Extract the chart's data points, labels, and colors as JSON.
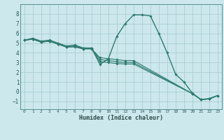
{
  "background_color": "#cce8ec",
  "grid_color": "#aacdd4",
  "line_color": "#2d7a6e",
  "spine_color": "#5a9090",
  "xlabel": "Humidex (Indice chaleur)",
  "xlim": [
    -0.5,
    23.5
  ],
  "ylim": [
    -1.8,
    9.0
  ],
  "yticks": [
    -1,
    0,
    1,
    2,
    3,
    4,
    5,
    6,
    7,
    8
  ],
  "xticks": [
    0,
    1,
    2,
    3,
    4,
    5,
    6,
    7,
    8,
    9,
    10,
    11,
    12,
    13,
    14,
    15,
    16,
    17,
    18,
    19,
    20,
    21,
    22,
    23
  ],
  "line1_x": [
    0,
    1,
    2,
    3,
    4,
    5,
    6,
    7,
    8,
    9,
    10,
    11,
    12,
    13,
    14,
    15,
    16,
    17,
    18,
    19,
    20,
    21,
    22,
    23
  ],
  "line1_y": [
    5.3,
    5.5,
    5.2,
    5.3,
    5.0,
    4.7,
    4.8,
    4.5,
    4.5,
    2.8,
    3.4,
    5.7,
    7.0,
    7.9,
    7.9,
    7.8,
    6.0,
    4.0,
    1.8,
    1.0,
    -0.15,
    -0.8,
    -0.7,
    -0.4
  ],
  "line2_x": [
    0,
    1,
    2,
    3,
    4,
    5,
    6,
    7,
    8,
    9,
    10,
    11,
    12,
    13,
    20,
    21,
    22,
    23
  ],
  "line2_y": [
    5.3,
    5.4,
    5.1,
    5.2,
    4.9,
    4.6,
    4.6,
    4.4,
    4.4,
    3.5,
    3.4,
    3.3,
    3.2,
    3.2,
    -0.2,
    -0.8,
    -0.75,
    -0.4
  ],
  "line3_x": [
    0,
    1,
    2,
    3,
    4,
    5,
    6,
    7,
    8,
    9,
    10,
    11,
    12,
    13,
    20,
    21,
    22,
    23
  ],
  "line3_y": [
    5.3,
    5.4,
    5.1,
    5.2,
    4.9,
    4.6,
    4.7,
    4.45,
    4.45,
    3.3,
    3.2,
    3.1,
    3.0,
    3.0,
    -0.2,
    -0.8,
    -0.75,
    -0.4
  ],
  "line4_x": [
    0,
    1,
    2,
    3,
    4,
    5,
    6,
    7,
    8,
    9,
    10,
    11,
    12,
    13,
    20,
    21,
    22,
    23
  ],
  "line4_y": [
    5.3,
    5.4,
    5.1,
    5.2,
    4.9,
    4.6,
    4.65,
    4.42,
    4.42,
    3.1,
    3.0,
    2.9,
    2.85,
    2.85,
    -0.2,
    -0.8,
    -0.75,
    -0.4
  ]
}
